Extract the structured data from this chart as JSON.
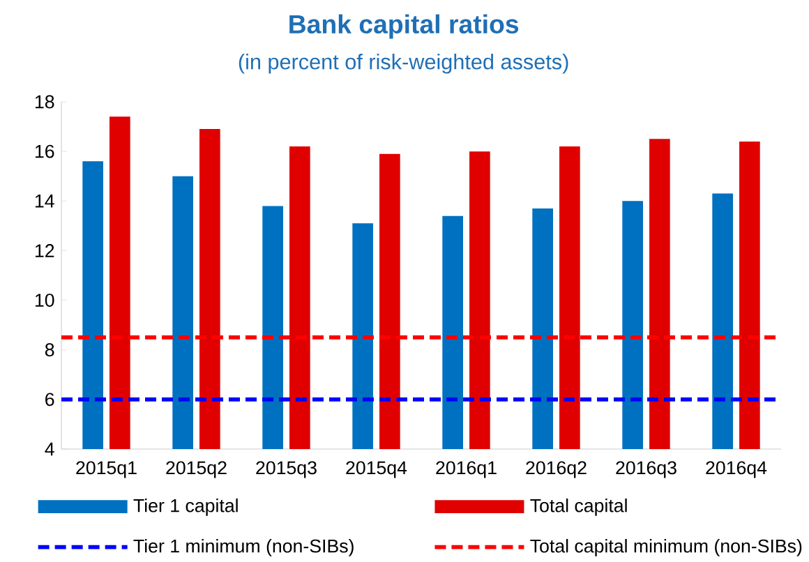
{
  "chart_data": {
    "type": "bar",
    "title": "Bank capital ratios",
    "subtitle": "(in percent of risk-weighted assets)",
    "categories": [
      "2015q1",
      "2015q2",
      "2015q3",
      "2015q4",
      "2016q1",
      "2016q2",
      "2016q3",
      "2016q4"
    ],
    "series": [
      {
        "name": "Tier 1 capital",
        "color": "#0070c0",
        "values": [
          15.6,
          15.0,
          13.8,
          13.1,
          13.4,
          13.7,
          14.0,
          14.3
        ]
      },
      {
        "name": "Total capital",
        "color": "#e00000",
        "values": [
          17.4,
          16.9,
          16.2,
          15.9,
          16.0,
          16.2,
          16.5,
          16.4
        ]
      }
    ],
    "ref_lines": [
      {
        "axis": "y",
        "value": 6,
        "label": "Tier 1 minimum (non-SIBs)",
        "color": "#0000ff",
        "line_style": "dashed"
      },
      {
        "axis": "y",
        "value": 8.5,
        "label": "Total capital minimum (non-SIBs)",
        "color": "#ff0000",
        "line_style": "dashed"
      }
    ],
    "ylim": [
      4,
      18
    ],
    "yticks": [
      4,
      6,
      8,
      10,
      12,
      14,
      16,
      18
    ],
    "grid": false,
    "legend": "bottom"
  }
}
